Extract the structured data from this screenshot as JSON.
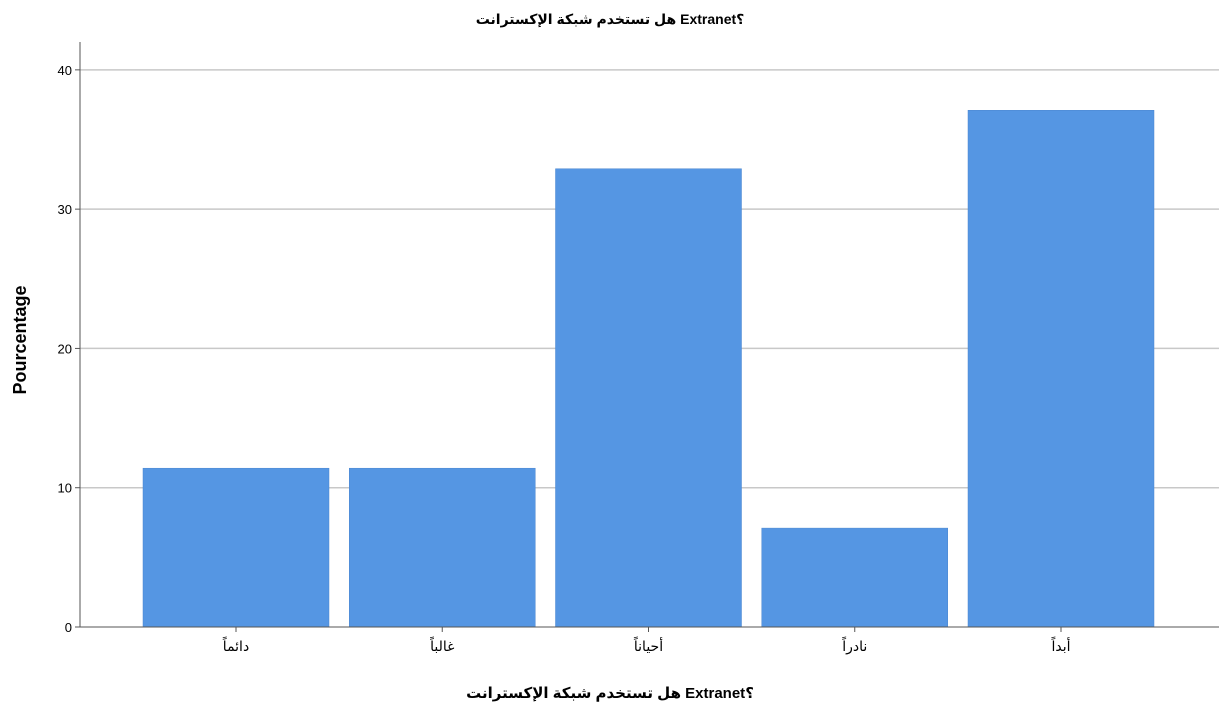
{
  "chart_data": {
    "type": "bar",
    "title": "هل تستخدم شبكة الإكسترانت Extranet؟",
    "xlabel": "هل تستخدم شبكة الإكسترانت Extranet؟",
    "ylabel": "Pourcentage",
    "categories": [
      "دائماً",
      "غالباً",
      "أحياناً",
      "نادراً",
      "أبداً"
    ],
    "values": [
      11.4,
      11.4,
      32.9,
      7.1,
      37.1
    ],
    "ylim": [
      0,
      42
    ],
    "yticks": [
      0,
      10,
      20,
      30,
      40
    ],
    "grid": true,
    "legend": "none",
    "colors": {
      "bar": "#5596E3",
      "bar_edge": "#4a86cf",
      "grid": "#c8c8c8",
      "axis": "#555555",
      "text": "#000000"
    }
  }
}
